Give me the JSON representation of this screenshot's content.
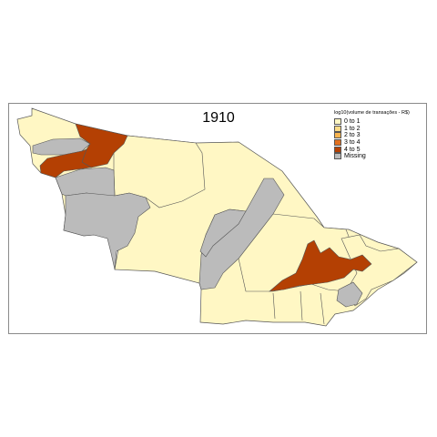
{
  "map": {
    "title": "1910",
    "legend_title": "log10(volume de transações - R$)",
    "legend_items": [
      {
        "label": "0 to 1",
        "color": "#FFF7C4"
      },
      {
        "label": "1 to 2",
        "color": "#FDDB87"
      },
      {
        "label": "2 to 3",
        "color": "#F9B44E"
      },
      {
        "label": "3 to 4",
        "color": "#E2701F"
      },
      {
        "label": "4 to 5",
        "color": "#B44003"
      },
      {
        "label": "Missing",
        "color": "#BBBBBB"
      }
    ],
    "border_color": "#555555",
    "regions": [
      {
        "id": "region-nw-north",
        "class": "4 to 5"
      },
      {
        "id": "region-nw-west",
        "class": "4 to 5"
      },
      {
        "id": "region-southeast-center",
        "class": "4 to 5"
      },
      {
        "id": "region-far-west",
        "class": "0 to 1"
      },
      {
        "id": "region-north-center",
        "class": "0 to 1"
      },
      {
        "id": "region-north-big",
        "class": "0 to 1"
      },
      {
        "id": "region-east",
        "class": "0 to 1"
      },
      {
        "id": "region-south-east",
        "class": "0 to 1"
      },
      {
        "id": "region-west-missing-1",
        "class": "Missing"
      },
      {
        "id": "region-west-missing-2",
        "class": "Missing"
      },
      {
        "id": "region-west-missing-3",
        "class": "Missing"
      },
      {
        "id": "region-center-missing",
        "class": "Missing"
      },
      {
        "id": "region-east-missing",
        "class": "Missing"
      }
    ]
  }
}
